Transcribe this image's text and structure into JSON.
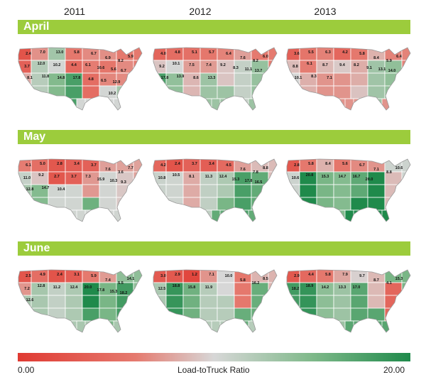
{
  "years": [
    "2011",
    "2012",
    "2013"
  ],
  "months": [
    "April",
    "May",
    "June"
  ],
  "legend": {
    "min_label": "0.00",
    "max_label": "20.00",
    "title": "Load-toTruck Ratio",
    "colors": [
      "#e03a32",
      "#e57a6f",
      "#d7d7d7",
      "#7fb98a",
      "#1f8a4b"
    ]
  },
  "maps": [
    {
      "month": "April",
      "year": "2011",
      "labels": [
        "2.4",
        "7.0",
        "13.0",
        "5.8",
        "6.7",
        "6.9",
        "8.2",
        "5.9",
        "3.7",
        "12.0",
        "10.2",
        "4.4",
        "6.1",
        "10.6",
        "5.6",
        "6.7",
        "8.1",
        "11.8",
        "14.8",
        "17.8",
        "4.8",
        "6.5",
        "12.9",
        "10.2"
      ]
    },
    {
      "month": "April",
      "year": "2012",
      "labels": [
        "4.0",
        "4.8",
        "5.1",
        "5.7",
        "6.4",
        "7.6",
        "8.2",
        "6.0",
        "9.2",
        "10.1",
        "7.5",
        "7.4",
        "9.2",
        "8.3",
        "11.1",
        "13.7",
        "17.8",
        "13.9",
        "8.6",
        "13.3"
      ]
    },
    {
      "month": "April",
      "year": "2013",
      "labels": [
        "3.6",
        "5.5",
        "6.3",
        "4.2",
        "5.8",
        "8.4",
        "5.9",
        "6.4",
        "8.8",
        "6.1",
        "8.7",
        "9.4",
        "8.2",
        "9.1",
        "13.1",
        "14.0",
        "10.1",
        "8.3",
        "7.1"
      ]
    },
    {
      "month": "May",
      "year": "2011",
      "labels": [
        "6.1",
        "5.0",
        "2.8",
        "3.4",
        "3.7",
        "7.6",
        "3.6",
        "7.7",
        "11.0",
        "9.2",
        "2.7",
        "3.7",
        "7.3",
        "15.9",
        "10.3",
        "9.3",
        "12.8",
        "14.7",
        "10.4"
      ]
    },
    {
      "month": "May",
      "year": "2012",
      "labels": [
        "4.2",
        "2.4",
        "3.7",
        "3.4",
        "4.5",
        "7.6",
        "7.8",
        "8.8",
        "10.8",
        "10.5",
        "8.1",
        "11.3",
        "12.4",
        "15.3",
        "17.8",
        "16.5"
      ]
    },
    {
      "month": "May",
      "year": "2013",
      "labels": [
        "2.8",
        "5.8",
        "8.4",
        "5.6",
        "6.7",
        "7.1",
        "8.8",
        "10.6",
        "10.6",
        "20.8",
        "15.3",
        "14.7",
        "16.7",
        "20.0"
      ]
    },
    {
      "month": "June",
      "year": "2011",
      "labels": [
        "2.5",
        "4.9",
        "2.4",
        "3.1",
        "5.9",
        "7.4",
        "5.5",
        "14.1",
        "7.2",
        "12.8",
        "11.2",
        "12.4",
        "20.0",
        "17.8",
        "15.3",
        "18.2",
        "12.6"
      ]
    },
    {
      "month": "June",
      "year": "2012",
      "labels": [
        "3.0",
        "2.9",
        "1.2",
        "7.1",
        "10.0",
        "5.8",
        "16.2",
        "8.5",
        "12.5",
        "18.8",
        "15.8",
        "11.9"
      ]
    },
    {
      "month": "June",
      "year": "2013",
      "labels": [
        "2.9",
        "4.4",
        "5.8",
        "7.9",
        "9.7",
        "8.7",
        "4.1",
        "15.3",
        "18.2",
        "18.9",
        "14.2",
        "13.3",
        "17.0"
      ]
    }
  ]
}
